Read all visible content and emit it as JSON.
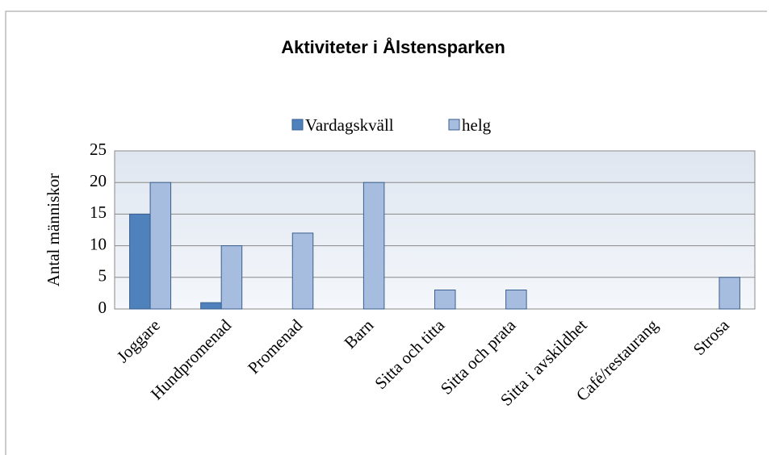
{
  "chart_data": {
    "type": "bar",
    "title": "Aktiviteter i Ålstensparken",
    "y_label": "Antal människor",
    "categories": [
      "Joggare",
      "Hundpromenad",
      "Promenad",
      "Barn",
      "Sitta och titta",
      "Sitta och prata",
      "Sitta i avskildhet",
      "Café/restaurang",
      "Strosa"
    ],
    "series": [
      {
        "name": "Vardagskväll",
        "color": "#4f81bd",
        "values": [
          15,
          1,
          0,
          0,
          0,
          0,
          0,
          0,
          0
        ]
      },
      {
        "name": "helg",
        "color": "#a7bde0",
        "values": [
          20,
          10,
          12,
          20,
          3,
          3,
          0,
          0,
          5
        ]
      }
    ],
    "ylim": [
      0,
      25
    ],
    "yticks": [
      0,
      5,
      10,
      15,
      20,
      25
    ],
    "grid": true,
    "legend": "top"
  }
}
